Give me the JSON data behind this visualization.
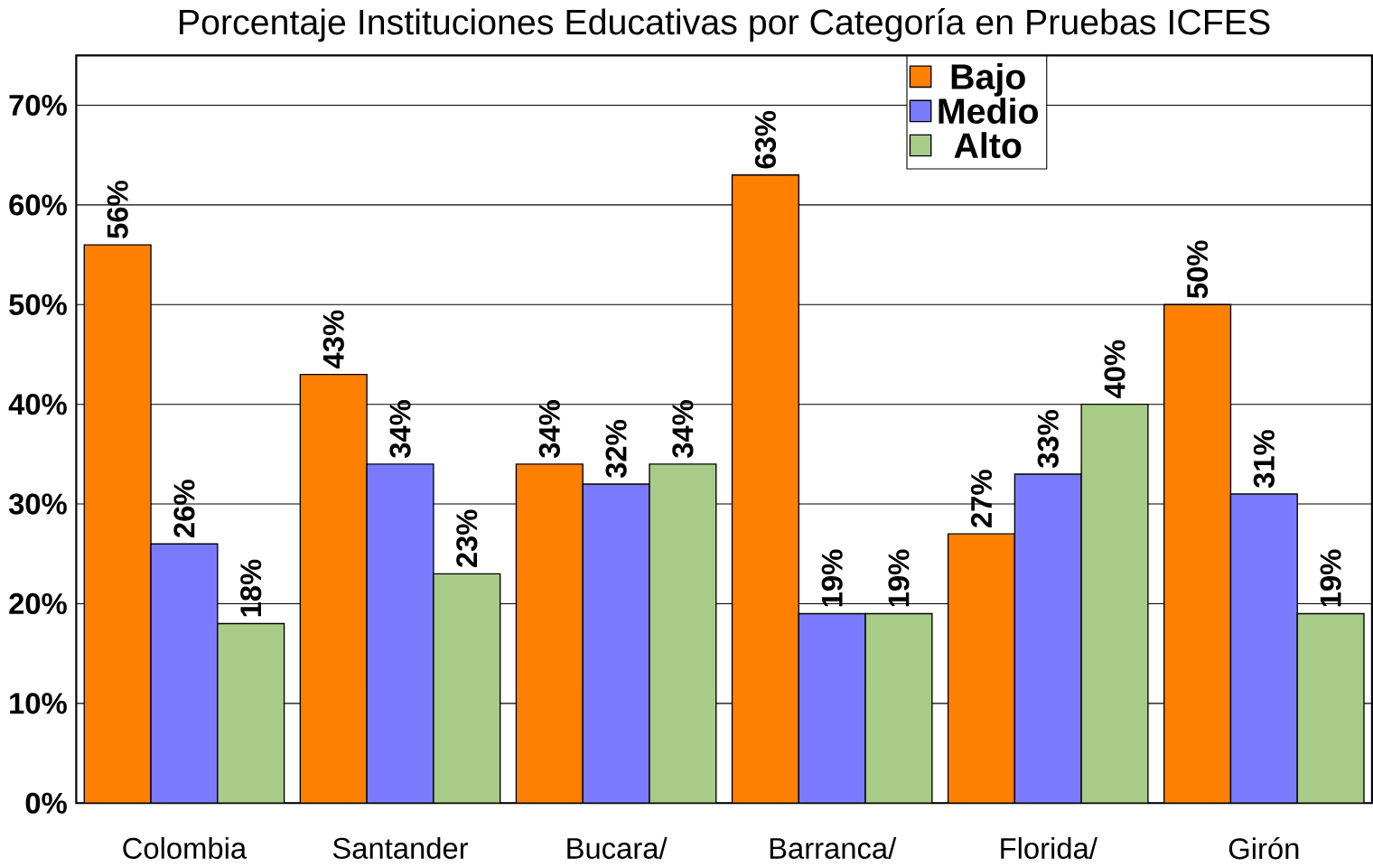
{
  "chart_data": {
    "type": "bar",
    "title": "Porcentaje Instituciones Educativas por Categoría en Pruebas ICFES",
    "categories": [
      "Colombia",
      "Santander",
      "Bucara/",
      "Barranca/",
      "Florida/",
      "Girón"
    ],
    "series": [
      {
        "name": "Bajo",
        "color": "#ff8000",
        "values": [
          56,
          43,
          34,
          63,
          27,
          50
        ],
        "value_labels": [
          "56%",
          "43%",
          "34%",
          "63%",
          "27%",
          "50%"
        ]
      },
      {
        "name": "Medio",
        "color": "#7a7aff",
        "values": [
          26,
          34,
          32,
          19,
          33,
          31
        ],
        "value_labels": [
          "26%",
          "34%",
          "32%",
          "19%",
          "33%",
          "31%"
        ]
      },
      {
        "name": "Alto",
        "color": "#a8cc88",
        "values": [
          18,
          23,
          34,
          19,
          40,
          19
        ],
        "value_labels": [
          "18%",
          "23%",
          "34%",
          "19%",
          "40%",
          "19%"
        ]
      }
    ],
    "ylim": [
      0,
      75
    ],
    "yticks": [
      {
        "value": 0,
        "label": "0%"
      },
      {
        "value": 10,
        "label": "10%"
      },
      {
        "value": 20,
        "label": "20%"
      },
      {
        "value": 30,
        "label": "30%"
      },
      {
        "value": 40,
        "label": "40%"
      },
      {
        "value": 50,
        "label": "50%"
      },
      {
        "value": 60,
        "label": "60%"
      },
      {
        "value": 70,
        "label": "70%"
      }
    ],
    "grid": "y",
    "legend": "top"
  }
}
